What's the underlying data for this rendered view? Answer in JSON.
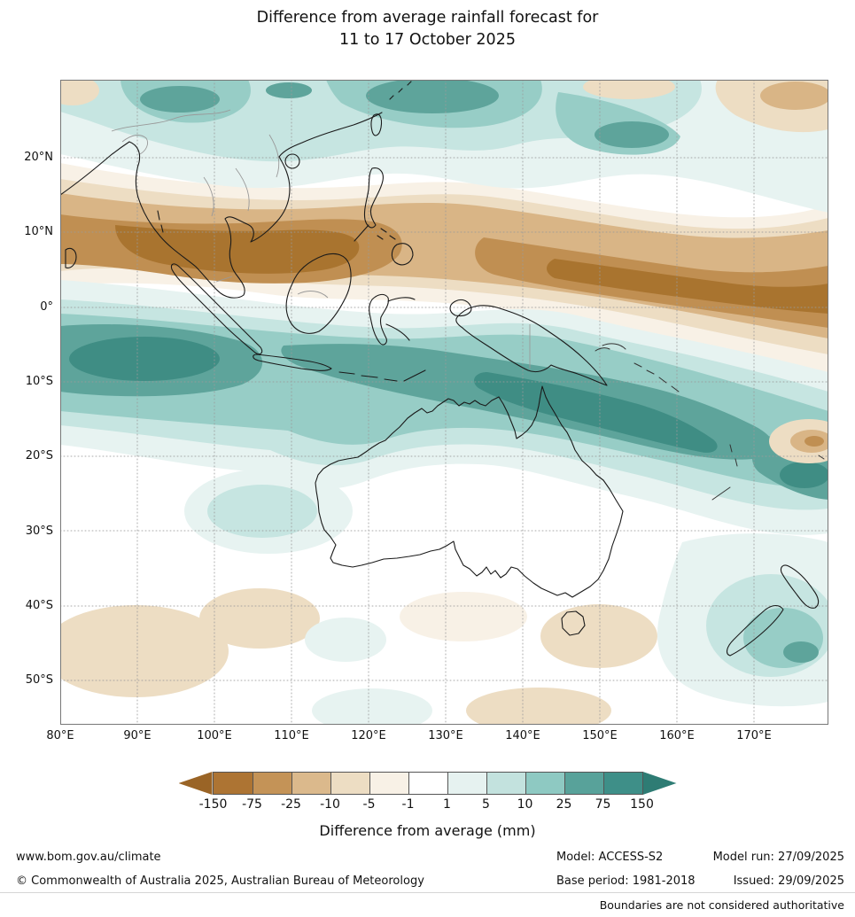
{
  "title": {
    "line1": "Difference from average rainfall forecast for",
    "line2": "11 to 17 October 2025"
  },
  "map": {
    "lat_labels": [
      "20°N",
      "10°N",
      "0°",
      "10°S",
      "20°S",
      "30°S",
      "40°S",
      "50°S"
    ],
    "lon_labels": [
      "80°E",
      "90°E",
      "100°E",
      "110°E",
      "120°E",
      "130°E",
      "140°E",
      "150°E",
      "160°E",
      "170°E"
    ]
  },
  "legend": {
    "title": "Difference from average (mm)",
    "tick_labels": [
      "-150",
      "-75",
      "-25",
      "-10",
      "-5",
      "-1",
      "1",
      "5",
      "10",
      "25",
      "75",
      "150"
    ],
    "cell_colors": [
      "#ad7433",
      "#c49357",
      "#dbb98c",
      "#edddc3",
      "#f8f1e6",
      "#ffffff",
      "#e6f2f0",
      "#c3e2de",
      "#8ec9c2",
      "#58a29a",
      "#3e8f88"
    ],
    "arrow_left_color": "#9a6426",
    "arrow_right_color": "#2e7c74"
  },
  "palette": {
    "dry_dark": "#a9742f",
    "dry": "#c08f52",
    "dry_light": "#d9b586",
    "dry_pale": "#edddc3",
    "dry_faint": "#f8f1e6",
    "wet_faint": "#e7f3f1",
    "wet_pale": "#c6e5e1",
    "wet_light": "#97cdc6",
    "wet": "#5ea49b",
    "wet_dark": "#3f8d84"
  },
  "footer": {
    "website": "www.bom.gov.au/climate",
    "copyright": "© Commonwealth of Australia 2025, Australian Bureau of Meteorology",
    "model_label": "Model: ACCESS-S2",
    "base_period_label": "Base period: 1981-2018",
    "model_run_label": "Model run: 27/09/2025",
    "issued_label": "Issued: 29/09/2025",
    "disclaimer": "Boundaries are not considered authoritative"
  }
}
